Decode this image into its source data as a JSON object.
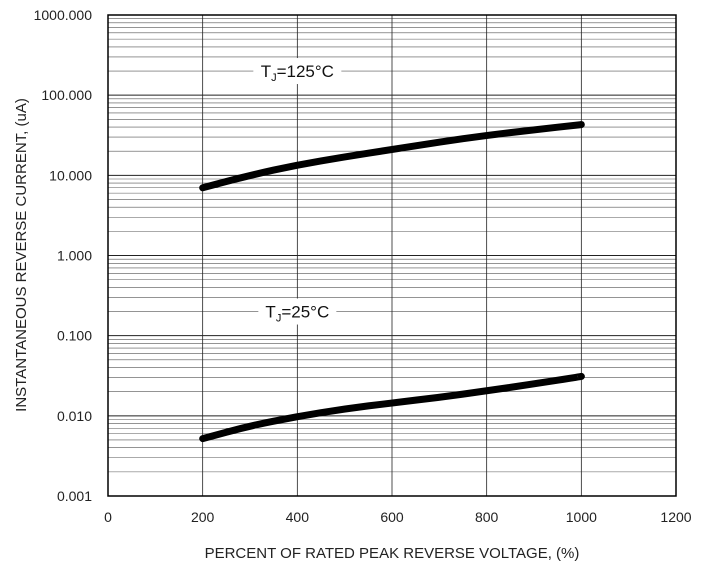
{
  "chart_data": {
    "type": "line",
    "xlabel": "PERCENT OF RATED PEAK REVERSE VOLTAGE, (%)",
    "ylabel": "INSTANTANEOUS REVERSE CURRENT, (uA)",
    "xlim": [
      0,
      1200
    ],
    "ylim": [
      0.001,
      1000
    ],
    "yscale": "log",
    "grid": true,
    "x_ticks": [
      0,
      200,
      400,
      600,
      800,
      1000,
      1200
    ],
    "x_tick_labels": [
      "0",
      "200",
      "400",
      "600",
      "800",
      "1000",
      "1200"
    ],
    "y_ticks": [
      0.001,
      0.01,
      0.1,
      1,
      10,
      100,
      1000
    ],
    "y_tick_labels": [
      "0.001",
      "0.010",
      "0.100",
      "1.000",
      "10.000",
      "100.000",
      "1000.000"
    ],
    "series": [
      {
        "name": "",
        "x": [
          200,
          300,
          400,
          500,
          600,
          700,
          800,
          900,
          1000
        ],
        "y": [
          7,
          10,
          13.5,
          17,
          21,
          26,
          31.5,
          37,
          43
        ]
      },
      {
        "name": "",
        "x": [
          200,
          300,
          400,
          500,
          600,
          700,
          800,
          900,
          1000
        ],
        "y": [
          0.0052,
          0.0075,
          0.0098,
          0.0122,
          0.0145,
          0.017,
          0.0205,
          0.025,
          0.031
        ]
      }
    ],
    "annotations": [
      {
        "main": "T",
        "sub": "J",
        "rest": "=125°C",
        "x": 400,
        "y": 200
      },
      {
        "main": "T",
        "sub": "J",
        "rest": "=25°C",
        "x": 400,
        "y": 0.2
      }
    ],
    "colors": {
      "line": "#000000",
      "grid": "#555555",
      "axis": "#000000"
    }
  }
}
